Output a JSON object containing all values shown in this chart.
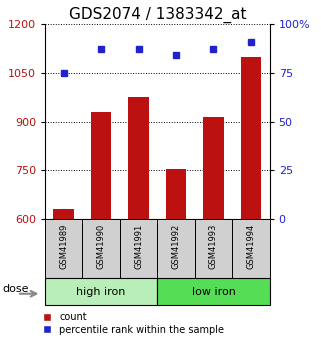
{
  "title": "GDS2074 / 1383342_at",
  "samples": [
    "GSM41989",
    "GSM41990",
    "GSM41991",
    "GSM41992",
    "GSM41993",
    "GSM41994"
  ],
  "counts": [
    630,
    930,
    975,
    755,
    915,
    1100
  ],
  "percentiles": [
    75,
    87,
    87,
    84,
    87,
    91
  ],
  "ylim_left": [
    600,
    1200
  ],
  "ylim_right": [
    0,
    100
  ],
  "yticks_left": [
    600,
    750,
    900,
    1050,
    1200
  ],
  "yticks_right": [
    0,
    25,
    50,
    75,
    100
  ],
  "ytick_labels_right": [
    "0",
    "25",
    "50",
    "75",
    "100%"
  ],
  "groups": [
    {
      "label": "high iron",
      "indices": [
        0,
        1,
        2
      ],
      "color": "#b8eeb8"
    },
    {
      "label": "low iron",
      "indices": [
        3,
        4,
        5
      ],
      "color": "#55dd55"
    }
  ],
  "bar_color": "#bb1111",
  "dot_color": "#2222cc",
  "bar_width": 0.55,
  "sample_box_color": "#d0d0d0",
  "dose_label": "dose",
  "legend_count": "count",
  "legend_percentile": "percentile rank within the sample",
  "title_fontsize": 11,
  "tick_fontsize": 8,
  "sample_fontsize": 6,
  "group_fontsize": 8,
  "legend_fontsize": 7
}
